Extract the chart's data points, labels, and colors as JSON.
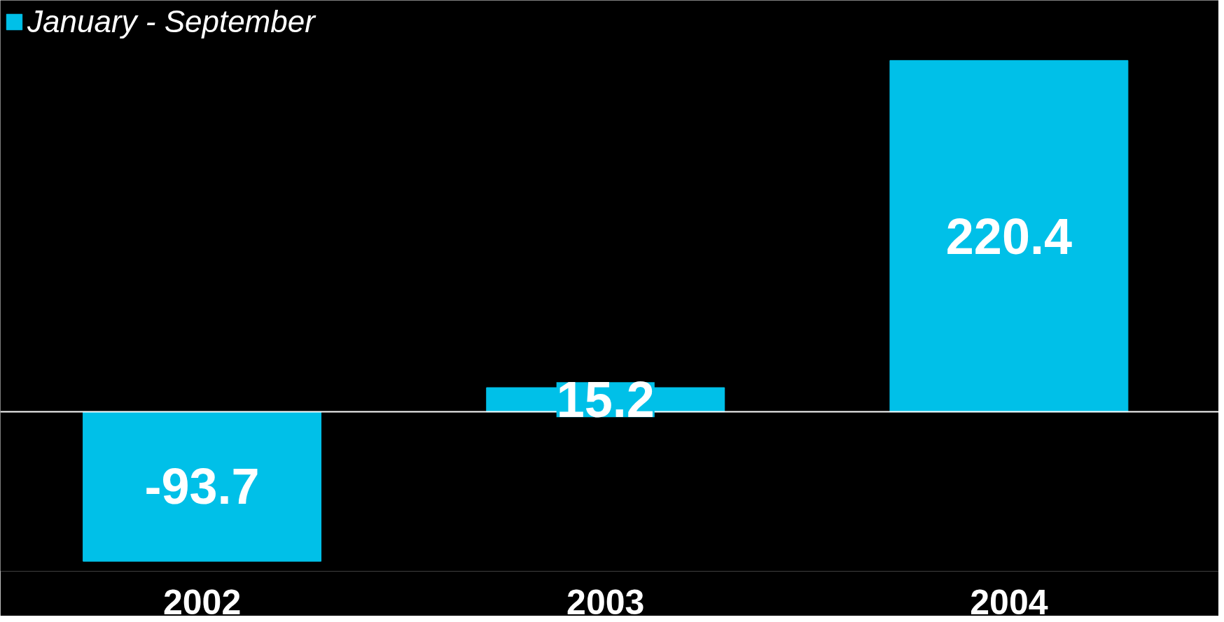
{
  "chart_data": {
    "type": "bar",
    "categories": [
      "2002",
      "2003",
      "2004"
    ],
    "series": [
      {
        "name": "January - September",
        "color": "#00c0e8",
        "values": [
          -93.7,
          15.2,
          220.4
        ]
      }
    ],
    "data_labels": true,
    "legend": "top left",
    "grid": false,
    "tick_labels": "x"
  }
}
